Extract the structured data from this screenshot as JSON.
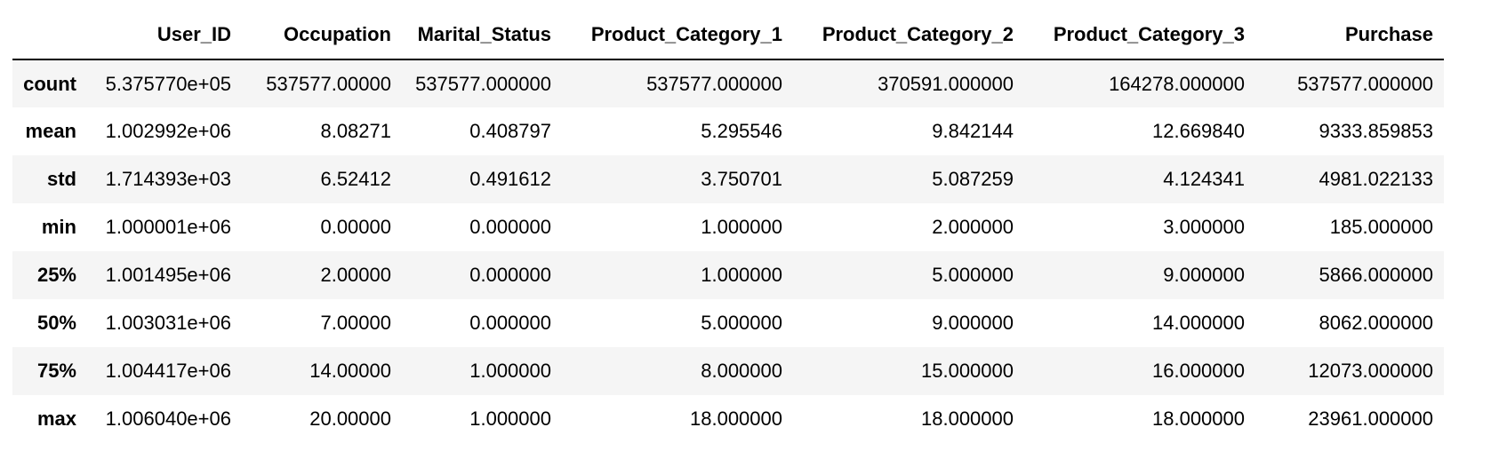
{
  "table": {
    "index_header": "",
    "columns": [
      "User_ID",
      "Occupation",
      "Marital_Status",
      "Product_Category_1",
      "Product_Category_2",
      "Product_Category_3",
      "Purchase"
    ],
    "rows": [
      {
        "label": "count",
        "cells": [
          "5.375770e+05",
          "537577.00000",
          "537577.000000",
          "537577.000000",
          "370591.000000",
          "164278.000000",
          "537577.000000"
        ]
      },
      {
        "label": "mean",
        "cells": [
          "1.002992e+06",
          "8.08271",
          "0.408797",
          "5.295546",
          "9.842144",
          "12.669840",
          "9333.859853"
        ]
      },
      {
        "label": "std",
        "cells": [
          "1.714393e+03",
          "6.52412",
          "0.491612",
          "3.750701",
          "5.087259",
          "4.124341",
          "4981.022133"
        ]
      },
      {
        "label": "min",
        "cells": [
          "1.000001e+06",
          "0.00000",
          "0.000000",
          "1.000000",
          "2.000000",
          "3.000000",
          "185.000000"
        ]
      },
      {
        "label": "25%",
        "cells": [
          "1.001495e+06",
          "2.00000",
          "0.000000",
          "1.000000",
          "5.000000",
          "9.000000",
          "5866.000000"
        ]
      },
      {
        "label": "50%",
        "cells": [
          "1.003031e+06",
          "7.00000",
          "0.000000",
          "5.000000",
          "9.000000",
          "14.000000",
          "8062.000000"
        ]
      },
      {
        "label": "75%",
        "cells": [
          "1.004417e+06",
          "14.00000",
          "1.000000",
          "8.000000",
          "15.000000",
          "16.000000",
          "12073.000000"
        ]
      },
      {
        "label": "max",
        "cells": [
          "1.006040e+06",
          "20.00000",
          "1.000000",
          "18.000000",
          "18.000000",
          "18.000000",
          "23961.000000"
        ]
      }
    ]
  },
  "colors": {
    "striped_row": "#f5f5f5",
    "header_rule": "#000000"
  }
}
